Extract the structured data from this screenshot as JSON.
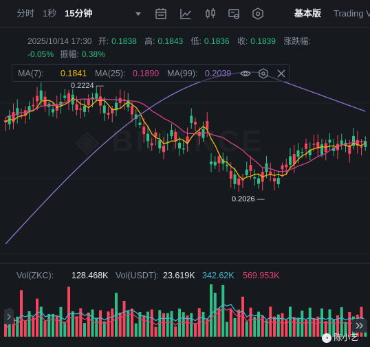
{
  "toolbar": {
    "time_label": "分时",
    "interval_1s": "1秒",
    "interval_15m": "15分钟",
    "view_basic": "基本版",
    "view_tradingview": "Trading View"
  },
  "ohlc": {
    "datetime": "2025/10/14 17:30",
    "open_label": "开:",
    "open": "0.1838",
    "high_label": "高:",
    "high": "0.1843",
    "low_label": "低:",
    "low": "0.1836",
    "close_label": "收:",
    "close": "0.1839",
    "change_label": "涨跌幅:",
    "change": "-0.05%",
    "amplitude_label": "振幅:",
    "amplitude": "0.38%"
  },
  "ma": {
    "ma7_label": "MA(7):",
    "ma7": "0.1841",
    "ma25_label": "MA(25):",
    "ma25": "0.1890",
    "ma99_label": "MA(99):",
    "ma99": "0.2039"
  },
  "price_markers": {
    "high": "0.2224",
    "low": "0.2026"
  },
  "volume": {
    "vol_zkc_label": "Vol(ZKC):",
    "vol_zkc": "128.468K",
    "vol_usdt_label": "Vol(USDT):",
    "vol_usdt": "23.619K",
    "vol_ma1": "342.62K",
    "vol_ma2": "569.953K"
  },
  "watermark": "陈小艺",
  "colors": {
    "up": "#2ebd85",
    "down": "#f6465d",
    "ma7": "#f0b90b",
    "ma25": "#d6408f",
    "ma99": "#8e72d3",
    "vol_ma1": "#46b5d1",
    "vol_ma2": "#e0406f"
  },
  "icons": [
    "dropdown-icon",
    "indicator-settings-icon",
    "chart-line-icon",
    "candles-icon",
    "layout-icon",
    "hexagon-settings-icon",
    "eye-icon",
    "close-icon",
    "expand-icon"
  ]
}
